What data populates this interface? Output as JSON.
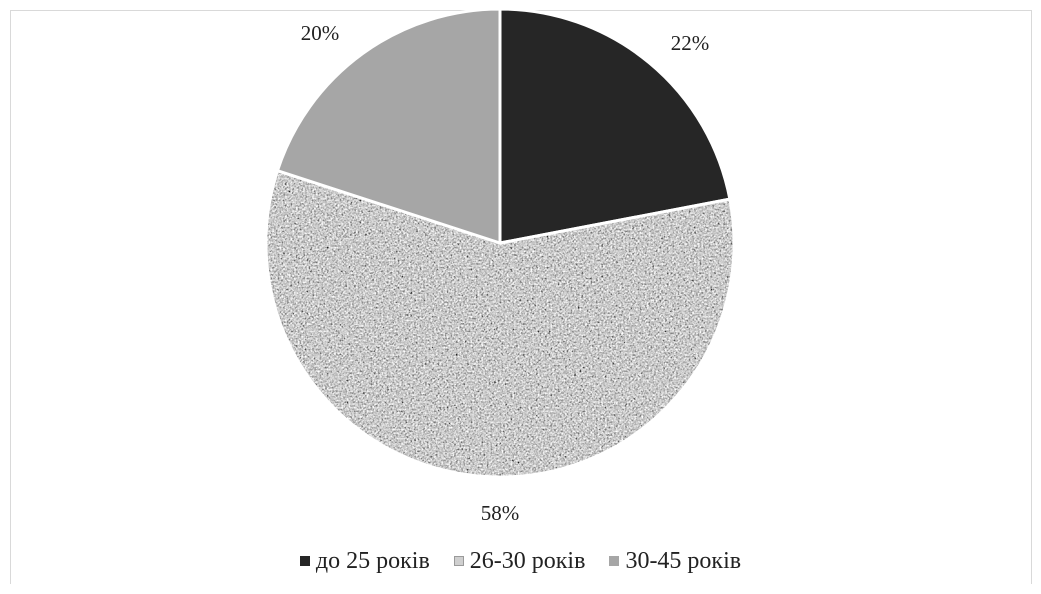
{
  "chart_data": {
    "type": "pie",
    "title": "",
    "categories": [
      "до 25 років",
      "26-30 років",
      "30-45 років"
    ],
    "values": [
      22,
      58,
      20
    ],
    "labels": [
      "22%",
      "58%",
      "20%"
    ],
    "colors": [
      "#262626",
      "#9a9a9a",
      "#a6a6a6"
    ],
    "legend_position": "bottom"
  }
}
